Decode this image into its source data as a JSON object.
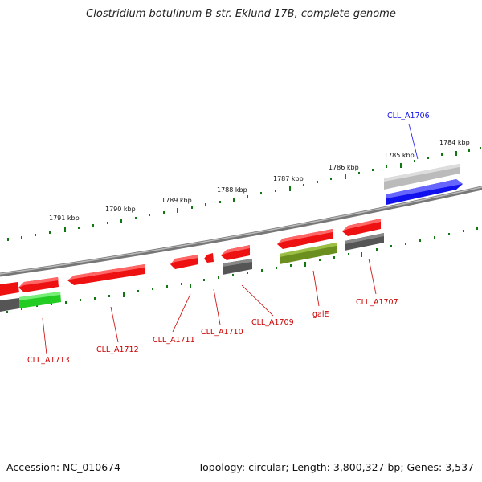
{
  "title": "Clostridium botulinum B str. Eklund 17B, complete genome",
  "footer": {
    "accession": "Accession: NC_010674",
    "summary": "Topology: circular; Length: 3,800,327 bp; Genes: 3,537"
  },
  "colors": {
    "red": "#ee1111",
    "green": "#22cc22",
    "olive": "#6b8f1e",
    "grey": "#555555",
    "lightgrey": "#bbbbbb",
    "blue": "#1111ee",
    "tick": "#117711"
  },
  "kbp_labels": [
    "1791 kbp",
    "1790 kbp",
    "1789 kbp",
    "1788 kbp",
    "1787 kbp",
    "1786 kbp",
    "1785 kbp",
    "1784 kbp"
  ],
  "genes": {
    "CLL_A1706": "CLL_A1706",
    "CLL_A1707": "CLL_A1707",
    "galE": "galE",
    "CLL_A1709": "CLL_A1709",
    "CLL_A1710": "CLL_A1710",
    "CLL_A1711": "CLL_A1711",
    "CLL_A1712": "CLL_A1712",
    "CLL_A1713": "CLL_A1713"
  }
}
